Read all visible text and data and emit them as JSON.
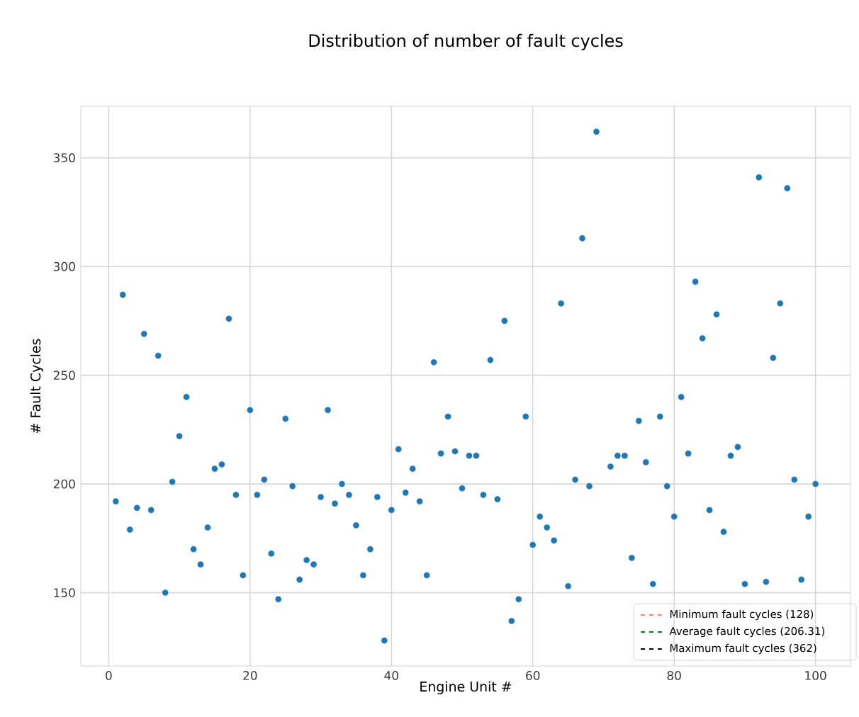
{
  "chart_data": {
    "type": "scatter",
    "title": "Distribution of number of fault cycles",
    "xlabel": "Engine Unit #",
    "ylabel": "# Fault Cycles",
    "xlim": [
      -3.95,
      104.95
    ],
    "ylim": [
      116.3,
      373.7
    ],
    "xticks": [
      0,
      20,
      40,
      60,
      80,
      100
    ],
    "yticks": [
      150,
      200,
      250,
      300,
      350
    ],
    "grid": true,
    "marker": "circle",
    "x": [
      1,
      2,
      3,
      4,
      5,
      6,
      7,
      8,
      9,
      10,
      11,
      12,
      13,
      14,
      15,
      16,
      17,
      18,
      19,
      20,
      21,
      22,
      23,
      24,
      25,
      26,
      27,
      28,
      29,
      30,
      31,
      32,
      33,
      34,
      35,
      36,
      37,
      38,
      39,
      40,
      41,
      42,
      43,
      44,
      45,
      46,
      47,
      48,
      49,
      50,
      51,
      52,
      53,
      54,
      55,
      56,
      57,
      58,
      59,
      60,
      61,
      62,
      63,
      64,
      65,
      66,
      67,
      68,
      69,
      70,
      71,
      72,
      73,
      74,
      75,
      76,
      77,
      78,
      79,
      80,
      81,
      82,
      83,
      84,
      85,
      86,
      87,
      88,
      89,
      90,
      91,
      92,
      93,
      94,
      95,
      96,
      97,
      98,
      99,
      100
    ],
    "series": [
      {
        "color": "#1f77b4",
        "values": [
          192,
          287,
          179,
          189,
          269,
          188,
          259,
          150,
          201,
          222,
          240,
          170,
          163,
          180,
          207,
          209,
          276,
          195,
          158,
          234,
          195,
          202,
          168,
          147,
          230,
          199,
          156,
          165,
          163,
          194,
          234,
          191,
          200,
          195,
          181,
          158,
          170,
          194,
          128,
          188,
          216,
          196,
          207,
          192,
          158,
          256,
          214,
          231,
          215,
          198,
          213,
          213,
          195,
          257,
          193,
          275,
          137,
          147,
          231,
          172,
          185,
          180,
          174,
          283,
          153,
          202,
          313,
          199,
          362,
          null,
          208,
          213,
          213,
          166,
          229,
          210,
          154,
          231,
          199,
          185,
          240,
          214,
          293,
          267,
          188,
          278,
          178,
          213,
          217,
          154,
          null,
          341,
          155,
          258,
          283,
          336,
          202,
          156,
          185,
          200
        ]
      }
    ],
    "annotations": [
      "Minimum fault cycles (128)",
      "Average fault cycles (206.31)",
      "Maximum fault cycles (362)"
    ]
  }
}
